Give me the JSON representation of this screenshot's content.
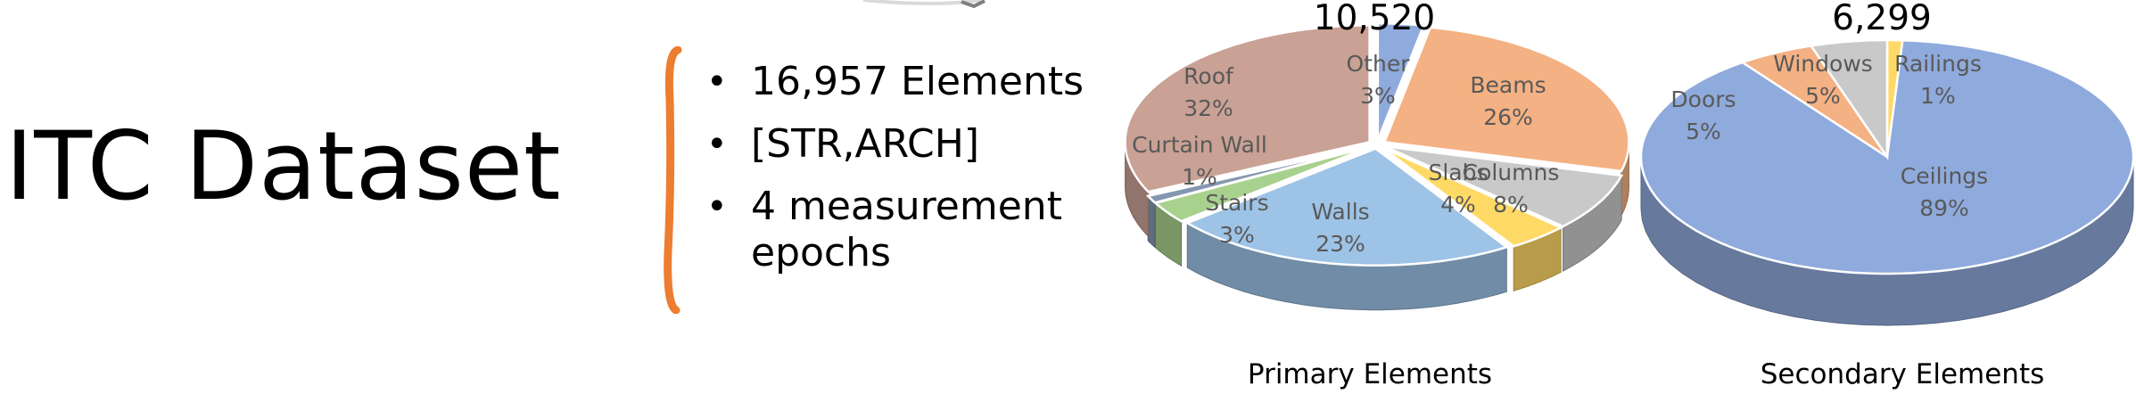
{
  "slide": {
    "title": "ITC Dataset",
    "bullets": [
      "16,957 Elements",
      "[STR,ARCH]",
      "4 measurement epochs"
    ],
    "accent_color": "#ED7D31"
  },
  "chart_data": [
    {
      "type": "pie",
      "title": "Primary Elements",
      "total_label": "10,520",
      "categories": [
        "Other",
        "Beams",
        "Columns",
        "Slabs",
        "Walls",
        "Stairs",
        "Curtain Wall",
        "Roof"
      ],
      "values": [
        3,
        26,
        8,
        4,
        23,
        3,
        1,
        32
      ],
      "value_labels": [
        "3%",
        "26%",
        "8%",
        "4%",
        "23%",
        "3%",
        "1%",
        "32%"
      ],
      "colors": [
        "#8FAADC",
        "#F4B183",
        "#C9C9C9",
        "#FFD966",
        "#9DC3E6",
        "#A9D18E",
        "#8497B0",
        "#C9A195"
      ],
      "tilt_3d": true,
      "exploded": true
    },
    {
      "type": "pie",
      "title": "Secondary Elements",
      "total_label": "6,299",
      "categories": [
        "Railings",
        "Ceilings",
        "Doors",
        "Windows"
      ],
      "values": [
        1,
        89,
        5,
        5
      ],
      "value_labels": [
        "1%",
        "89%",
        "5%",
        "5%"
      ],
      "colors": [
        "#FFD966",
        "#8FAADC",
        "#F4B183",
        "#C9C9C9"
      ],
      "tilt_3d": true,
      "exploded": false
    }
  ]
}
